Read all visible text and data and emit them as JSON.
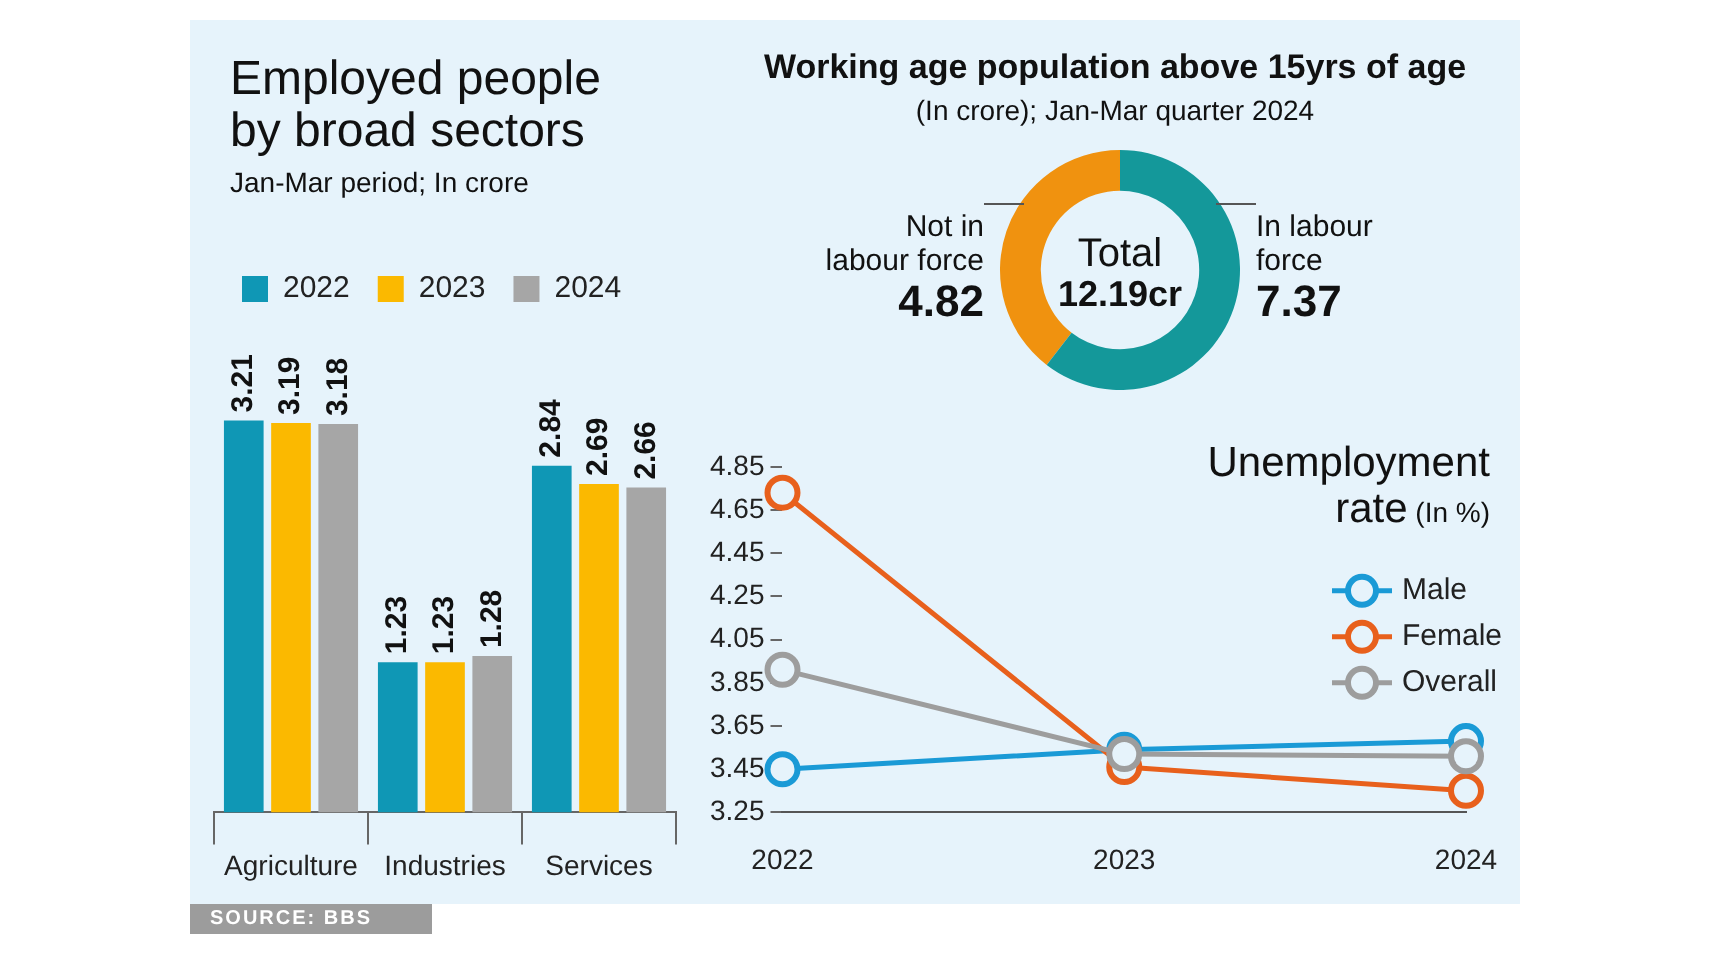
{
  "chart_data": [
    {
      "type": "bar",
      "title": "Employed people by broad sectors",
      "subtitle": "Jan-Mar period; In crore",
      "categories": [
        "Agriculture",
        "Industries",
        "Services"
      ],
      "series": [
        {
          "name": "2022",
          "color": "#0f97b5",
          "values": [
            3.21,
            1.23,
            2.84
          ]
        },
        {
          "name": "2023",
          "color": "#fbb900",
          "values": [
            3.19,
            1.23,
            2.69
          ]
        },
        {
          "name": "2024",
          "color": "#a6a6a6",
          "values": [
            3.18,
            1.28,
            2.66
          ]
        }
      ],
      "data_labels": true,
      "legend": "top left",
      "tick_labels": "x",
      "annotations": [
        "SOURCE: BBS"
      ]
    },
    {
      "type": "donut",
      "title": "Working age population above 15yrs of age",
      "subtitle": "(In crore); Jan-Mar quarter 2024",
      "categories": [
        "Not in labour force",
        "In labour force"
      ],
      "values": [
        4.82,
        7.37
      ],
      "colors": [
        "#f0920f",
        "#14989a"
      ],
      "data_labels": true,
      "annotations": [
        "Total 12.19cr"
      ]
    },
    {
      "type": "line",
      "title": "Unemployment rate",
      "subtitle": "(In %)",
      "categories": [
        "2022",
        "2023",
        "2024"
      ],
      "series": [
        {
          "name": "Male",
          "color": "#1a9ad6",
          "values": [
            3.45,
            3.54,
            3.58
          ]
        },
        {
          "name": "Female",
          "color": "#e8601c",
          "values": [
            4.73,
            3.46,
            3.35
          ]
        },
        {
          "name": "Overall",
          "color": "#9d9d9d",
          "values": [
            3.91,
            3.52,
            3.51
          ]
        }
      ],
      "ylim": [
        3.25,
        4.85
      ],
      "yticks": [
        3.25,
        3.45,
        3.65,
        3.85,
        4.05,
        4.25,
        4.45,
        4.65,
        4.85
      ],
      "marker": "circle",
      "legend": "right"
    }
  ]
}
